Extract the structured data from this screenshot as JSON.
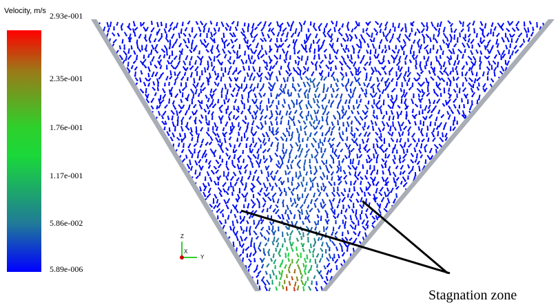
{
  "legend": {
    "title": "Velocity, m/s",
    "ticks": [
      "2.93e-001",
      "2.35e-001",
      "1.76e-001",
      "1.17e-001",
      "5.86e-002",
      "5.89e-006"
    ],
    "colors": {
      "max": "#ff0000",
      "upper": "#9a7a18",
      "mid": "#2fd02c",
      "lower": "#207a98",
      "min": "#0000ff"
    }
  },
  "triad": {
    "z": "Z",
    "x": "X",
    "y": "Y"
  },
  "annotation": {
    "label": "Stagnation zone"
  },
  "hopper": {
    "wall_color": "#a9aeb6",
    "vector_field": "blue-to-red velocity vectors"
  }
}
